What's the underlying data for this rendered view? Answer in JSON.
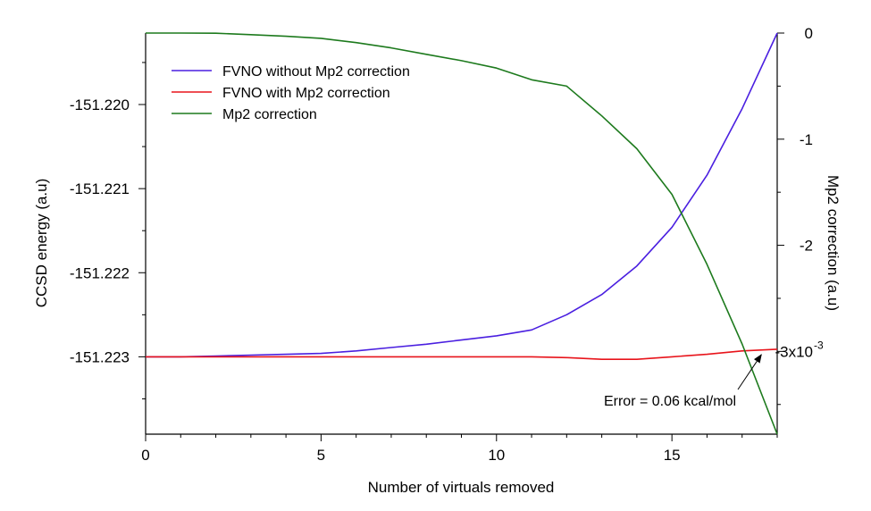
{
  "chart_data": {
    "type": "line",
    "title": "",
    "xlabel": "Number of virtuals removed",
    "ylabel_left": "CCSD energy (a.u)",
    "ylabel_right": "Mp2 correction (a.u)",
    "xlim": [
      0,
      18
    ],
    "ylim_left": [
      -151.22392,
      -151.21915
    ],
    "ylim_right": [
      -0.00378,
      0.0
    ],
    "x_ticks": [
      0,
      5,
      10,
      15
    ],
    "x_tick_labels": [
      "0",
      "5",
      "10",
      "15"
    ],
    "y_left_ticks": [
      -151.22,
      -151.221,
      -151.222,
      -151.223
    ],
    "y_left_tick_labels": [
      "-151.220",
      "-151.221",
      "-151.222",
      "-151.223"
    ],
    "y_right_ticks": [
      0,
      -0.001,
      -0.002,
      -0.003
    ],
    "y_right_tick_labels": [
      "0",
      "-1",
      "-2",
      "-3x10"
    ],
    "y_right_exponent": "-3",
    "grid": false,
    "legend_position": "top-left",
    "series": [
      {
        "name": "FVNO without Mp2 correction",
        "axis": "left",
        "color": "#4a1fe0",
        "x": [
          0,
          1,
          2,
          3,
          4,
          5,
          6,
          7,
          8,
          9,
          10,
          11,
          12,
          13,
          14,
          15,
          16,
          17,
          18
        ],
        "y": [
          -151.223,
          -151.223,
          -151.22299,
          -151.22298,
          -151.22297,
          -151.22296,
          -151.22293,
          -151.22289,
          -151.22285,
          -151.2228,
          -151.22275,
          -151.22268,
          -151.2225,
          -151.22226,
          -151.22192,
          -151.22146,
          -151.22084,
          -151.22005,
          -151.21915
        ]
      },
      {
        "name": "FVNO with Mp2 correction",
        "axis": "left",
        "color": "#e8141b",
        "x": [
          0,
          1,
          2,
          3,
          4,
          5,
          6,
          7,
          8,
          9,
          10,
          11,
          12,
          13,
          14,
          15,
          16,
          17,
          18
        ],
        "y": [
          -151.223,
          -151.223,
          -151.223,
          -151.223,
          -151.223,
          -151.223,
          -151.223,
          -151.223,
          -151.223,
          -151.223,
          -151.223,
          -151.223,
          -151.22301,
          -151.22303,
          -151.22303,
          -151.223,
          -151.22297,
          -151.22293,
          -151.22291
        ]
      },
      {
        "name": "Mp2 correction",
        "axis": "right",
        "color": "#1d7a1d",
        "x": [
          0,
          1,
          2,
          3,
          4,
          5,
          6,
          7,
          8,
          9,
          10,
          11,
          12,
          13,
          14,
          15,
          16,
          17,
          18
        ],
        "y": [
          0.0,
          0.0,
          -2e-06,
          -1.5e-05,
          -3e-05,
          -5e-05,
          -9e-05,
          -0.00014,
          -0.0002,
          -0.00026,
          -0.00033,
          -0.00044,
          -0.0005,
          -0.00078,
          -0.00109,
          -0.00152,
          -0.00218,
          -0.00293,
          -0.00378
        ]
      }
    ],
    "annotations": [
      {
        "text": "Error = 0.06 kcal/mol",
        "points_to": {
          "x": 17.6,
          "y": -151.22291,
          "axis": "left"
        }
      }
    ]
  }
}
